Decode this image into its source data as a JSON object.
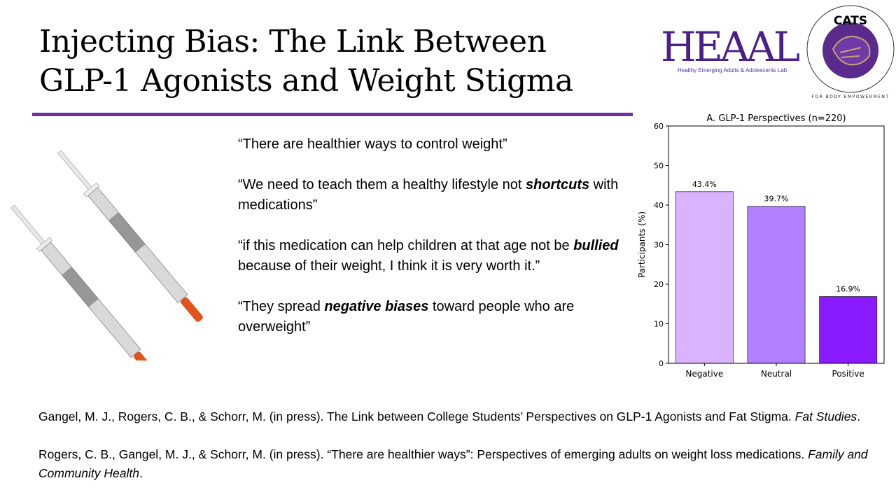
{
  "slide": {
    "title_lines": [
      "Injecting Bias: The Link Between",
      "GLP-1 Agonists and Weight Stigma"
    ],
    "accent_color": "#7030a0"
  },
  "logos": {
    "heaal": {
      "wordmark": "HEAAL",
      "subtitle": "Healthy Emerging Adults & Adolescents Lab"
    },
    "cats": {
      "top": "CATS",
      "ring": "FOR BODY EMPOWERMENT"
    }
  },
  "quotes": [
    {
      "parts": [
        {
          "t": "“There are healthier ways to control weight”"
        }
      ]
    },
    {
      "parts": [
        {
          "t": "“We need to teach them a healthy lifestyle not "
        },
        {
          "t": "shortcuts",
          "em": true
        },
        {
          "t": " with medications”"
        }
      ]
    },
    {
      "parts": [
        {
          "t": "“if this medication can help children at that age not be "
        },
        {
          "t": "bullied",
          "em": true
        },
        {
          "t": " because of their weight, I think it is very worth it.”"
        }
      ]
    },
    {
      "parts": [
        {
          "t": "“They spread "
        },
        {
          "t": "negative biases",
          "em": true
        },
        {
          "t": " toward people who are overweight”"
        }
      ]
    }
  ],
  "references": [
    {
      "text": "Gangel, M. J., Rogers, C. B., & Schorr, M. (in press). The Link between College Students’ Perspectives on GLP-1 Agonists and Fat Stigma. ",
      "journal": "Fat Studies",
      "end": "."
    },
    {
      "text": "Rogers, C. B., Gangel, M. J., & Schorr, M. (in press). “There are healthier ways”: Perspectives of emerging adults on weight loss medications. ",
      "journal": "Family and Community Health",
      "end": "."
    }
  ],
  "chart_data": {
    "type": "bar",
    "title": "A. GLP-1 Perspectives (n=220)",
    "xlabel": "",
    "ylabel": "Participants (%)",
    "categories": [
      "Negative",
      "Neutral",
      "Positive"
    ],
    "values": [
      43.4,
      39.7,
      16.9
    ],
    "data_labels": [
      "43.4%",
      "39.7%",
      "16.9%"
    ],
    "colors": [
      "#dab3ff",
      "#b27fff",
      "#8a1aff"
    ],
    "ylim": [
      0,
      60
    ],
    "yticks": [
      0,
      10,
      20,
      30,
      40,
      50,
      60
    ],
    "grid": false
  }
}
